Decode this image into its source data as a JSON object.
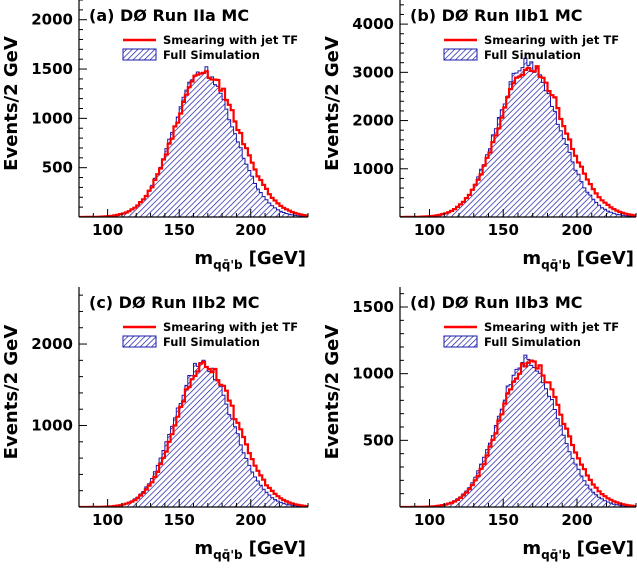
{
  "colors": {
    "smearing": "#ff0000",
    "fullsim": "#1a1aa8",
    "axis": "#000000",
    "background": "#ffffff"
  },
  "legend": {
    "smearing_label": "Smearing with jet TF",
    "fullsim_label": "Full Simulation"
  },
  "chart_data": [
    {
      "type": "histogram",
      "panel_label": "(a) DØ Run IIa MC",
      "ylabel": "Events/2 GeV",
      "xlabel_main": "m",
      "xlabel_sub": "qq̄'b",
      "xlabel_unit": "[GeV]",
      "xlim": [
        80,
        240
      ],
      "ylim": [
        0,
        2200
      ],
      "xticks": [
        100,
        150,
        200
      ],
      "yticks": [
        500,
        1000,
        1500,
        2000
      ],
      "bin_width": 2,
      "peak_position": 167,
      "peak_height": 1480,
      "series": [
        {
          "name": "Smearing with jet TF",
          "style": "line",
          "mean": 168,
          "sigma": 21,
          "peak": 1465
        },
        {
          "name": "Full Simulation",
          "style": "hatched",
          "mean": 166,
          "sigma": 20,
          "peak": 1490
        }
      ],
      "legend_position": "top-right"
    },
    {
      "type": "histogram",
      "panel_label": "(b) DØ Run IIb1 MC",
      "ylabel": "Events/2 GeV",
      "xlabel_main": "m",
      "xlabel_sub": "qq̄'b",
      "xlabel_unit": "[GeV]",
      "xlim": [
        80,
        240
      ],
      "ylim": [
        0,
        4500
      ],
      "xticks": [
        100,
        150,
        200
      ],
      "yticks": [
        1000,
        2000,
        3000,
        4000
      ],
      "bin_width": 2,
      "peak_position": 167,
      "peak_height": 3150,
      "series": [
        {
          "name": "Smearing with jet TF",
          "style": "line",
          "mean": 168,
          "sigma": 21,
          "peak": 3120
        },
        {
          "name": "Full Simulation",
          "style": "hatched",
          "mean": 166,
          "sigma": 20,
          "peak": 3190
        }
      ],
      "legend_position": "top-right"
    },
    {
      "type": "histogram",
      "panel_label": "(c) DØ Run IIb2 MC",
      "ylabel": "Events/2 GeV",
      "xlabel_main": "m",
      "xlabel_sub": "qq̄'b",
      "xlabel_unit": "[GeV]",
      "xlim": [
        80,
        240
      ],
      "ylim": [
        0,
        2700
      ],
      "xticks": [
        100,
        150,
        200
      ],
      "yticks": [
        1000,
        2000
      ],
      "bin_width": 2,
      "peak_position": 167,
      "peak_height": 1750,
      "series": [
        {
          "name": "Smearing with jet TF",
          "style": "line",
          "mean": 168,
          "sigma": 20,
          "peak": 1730
        },
        {
          "name": "Full Simulation",
          "style": "hatched",
          "mean": 166,
          "sigma": 19.5,
          "peak": 1760
        }
      ],
      "legend_position": "top-right"
    },
    {
      "type": "histogram",
      "panel_label": "(d) DØ Run IIb3 MC",
      "ylabel": "Events/2 GeV",
      "xlabel_main": "m",
      "xlabel_sub": "qq̄'b",
      "xlabel_unit": "[GeV]",
      "xlim": [
        80,
        240
      ],
      "ylim": [
        0,
        1650
      ],
      "xticks": [
        100,
        150,
        200
      ],
      "yticks": [
        500,
        1000,
        1500
      ],
      "bin_width": 2,
      "peak_position": 167,
      "peak_height": 1100,
      "series": [
        {
          "name": "Smearing with jet TF",
          "style": "line",
          "mean": 168,
          "sigma": 20,
          "peak": 1090
        },
        {
          "name": "Full Simulation",
          "style": "hatched",
          "mean": 166,
          "sigma": 19.5,
          "peak": 1105
        }
      ],
      "legend_position": "top-right"
    }
  ]
}
